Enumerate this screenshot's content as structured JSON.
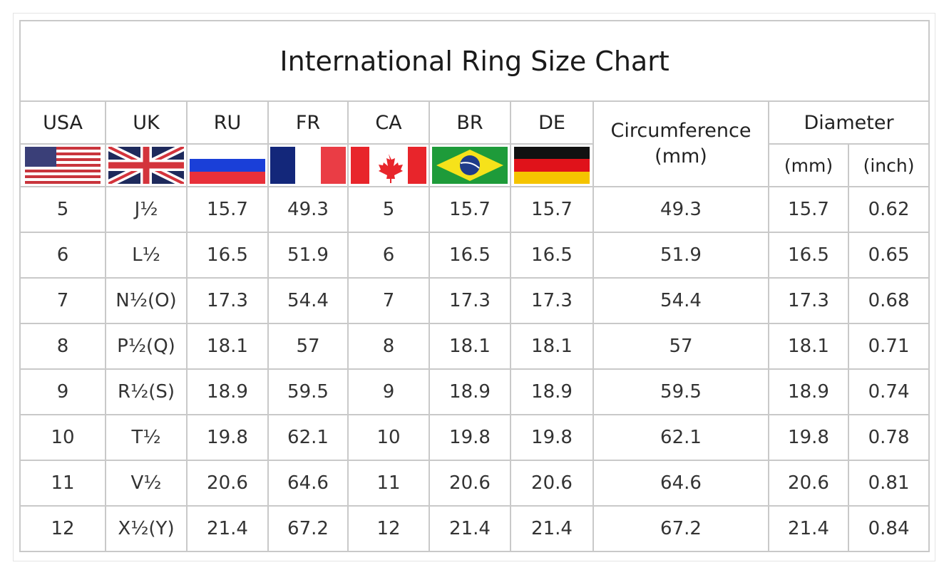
{
  "title": "International Ring Size Chart",
  "columns": [
    "USA",
    "UK",
    "RU",
    "FR",
    "CA",
    "BR",
    "DE"
  ],
  "circumference_header": "Circumference",
  "circumference_unit": "(mm)",
  "diameter_header": "Diameter",
  "diameter_units": [
    "(mm)",
    "(inch)"
  ],
  "flags": [
    "usa-flag",
    "uk-flag",
    "russia-flag",
    "france-flag",
    "canada-flag",
    "brazil-flag",
    "germany-flag"
  ],
  "rows": [
    [
      "5",
      "J½",
      "15.7",
      "49.3",
      "5",
      "15.7",
      "15.7",
      "49.3",
      "15.7",
      "0.62"
    ],
    [
      "6",
      "L½",
      "16.5",
      "51.9",
      "6",
      "16.5",
      "16.5",
      "51.9",
      "16.5",
      "0.65"
    ],
    [
      "7",
      "N½(O)",
      "17.3",
      "54.4",
      "7",
      "17.3",
      "17.3",
      "54.4",
      "17.3",
      "0.68"
    ],
    [
      "8",
      "P½(Q)",
      "18.1",
      "57",
      "8",
      "18.1",
      "18.1",
      "57",
      "18.1",
      "0.71"
    ],
    [
      "9",
      "R½(S)",
      "18.9",
      "59.5",
      "9",
      "18.9",
      "18.9",
      "59.5",
      "18.9",
      "0.74"
    ],
    [
      "10",
      "T½",
      "19.8",
      "62.1",
      "10",
      "19.8",
      "19.8",
      "62.1",
      "19.8",
      "0.78"
    ],
    [
      "11",
      "V½",
      "20.6",
      "64.6",
      "11",
      "20.6",
      "20.6",
      "64.6",
      "20.6",
      "0.81"
    ],
    [
      "12",
      "X½(Y)",
      "21.4",
      "67.2",
      "12",
      "21.4",
      "21.4",
      "67.2",
      "21.4",
      "0.84"
    ]
  ]
}
